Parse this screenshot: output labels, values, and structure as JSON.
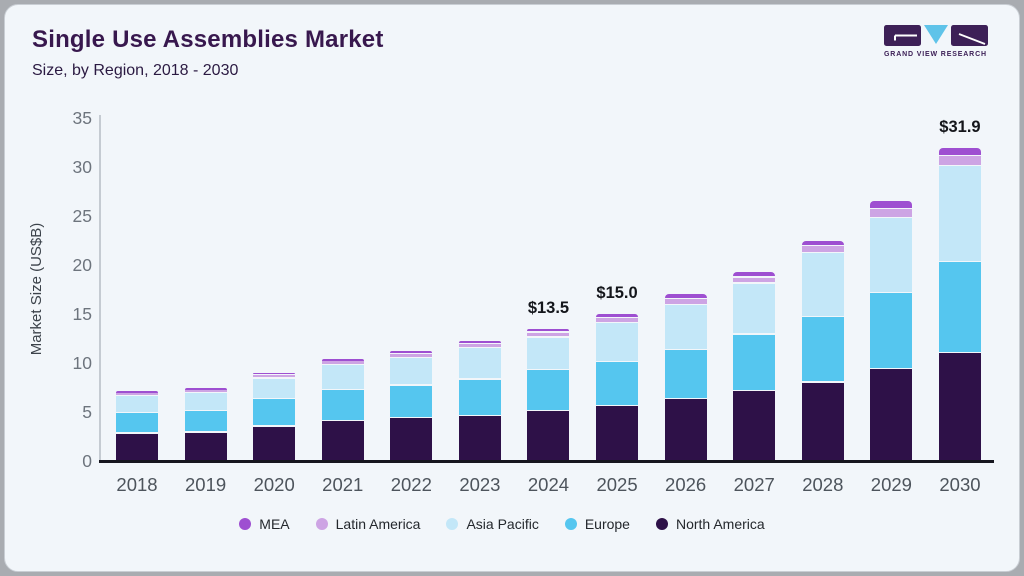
{
  "header": {
    "title": "Single Use Assemblies Market",
    "subtitle": "Size, by Region, 2018 - 2030"
  },
  "logo": {
    "text": "GRAND VIEW RESEARCH"
  },
  "chart_data": {
    "type": "bar",
    "stacked": true,
    "title": "Single Use Assemblies Market Size, by Region, 2018 - 2030",
    "xlabel": "",
    "ylabel": "Market Size (US$B)",
    "ylim": [
      0,
      35
    ],
    "yticks": [
      0,
      5,
      10,
      15,
      20,
      25,
      30,
      35
    ],
    "grid": false,
    "legend_position": "bottom",
    "categories": [
      "2018",
      "2019",
      "2020",
      "2021",
      "2022",
      "2023",
      "2024",
      "2025",
      "2026",
      "2027",
      "2028",
      "2029",
      "2030"
    ],
    "series": [
      {
        "name": "North America",
        "color": "#2e1148",
        "values": [
          2.8,
          2.9,
          3.5,
          4.1,
          4.4,
          4.6,
          5.1,
          5.6,
          6.3,
          7.1,
          8.0,
          9.4,
          11.0
        ]
      },
      {
        "name": "Europe",
        "color": "#55c6ef",
        "values": [
          2.1,
          2.2,
          2.8,
          3.1,
          3.3,
          3.7,
          4.2,
          4.5,
          5.0,
          5.8,
          6.7,
          7.7,
          9.3
        ]
      },
      {
        "name": "Asia Pacific",
        "color": "#c3e7f8",
        "values": [
          1.7,
          1.8,
          2.1,
          2.6,
          2.8,
          3.2,
          3.3,
          4.0,
          4.6,
          5.2,
          6.5,
          7.7,
          9.8
        ]
      },
      {
        "name": "Latin America",
        "color": "#cda4e4",
        "values": [
          0.3,
          0.3,
          0.35,
          0.4,
          0.45,
          0.45,
          0.5,
          0.5,
          0.6,
          0.6,
          0.7,
          0.9,
          1.0
        ]
      },
      {
        "name": "MEA",
        "color": "#9e4fd1",
        "values": [
          0.2,
          0.2,
          0.25,
          0.2,
          0.25,
          0.25,
          0.4,
          0.4,
          0.5,
          0.6,
          0.6,
          0.8,
          0.8
        ]
      }
    ],
    "totals": [
      7.1,
      7.4,
      9.0,
      10.4,
      11.2,
      12.2,
      13.5,
      15.0,
      17.0,
      19.3,
      22.5,
      26.5,
      31.9
    ],
    "annotations": [
      {
        "category": "2024",
        "label": "$13.5"
      },
      {
        "category": "2025",
        "label": "$15.0"
      },
      {
        "category": "2030",
        "label": "$31.9"
      }
    ],
    "legend_order": [
      "MEA",
      "Latin America",
      "Asia Pacific",
      "Europe",
      "North America"
    ]
  }
}
